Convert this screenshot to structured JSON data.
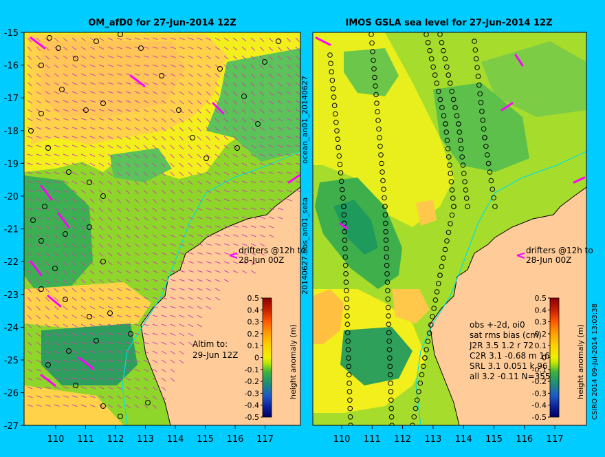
{
  "left_panel": {
    "title": "OM_afD0 for 27-Jun-2014 12Z",
    "drifters_label_1": "drifters @12h to",
    "drifters_label_2": "28-Jun 00Z",
    "altim_label_1": "Altim to:",
    "altim_label_2": "29-Jun 12Z",
    "colorbar_label": "height anomaly (m)"
  },
  "right_panel": {
    "title": "IMOS GSLA sea level  for 27-Jun-2014 12Z",
    "side_label_top": "ocean_an01_20140627",
    "side_label_bottom": "20140627.obs_an01_seta",
    "drifters_label_1": "drifters @12h to",
    "drifters_label_2": "28-Jun 00Z",
    "stats_lines": [
      "obs +-2d, oi0",
      "sat rms bias (cm)",
      "J2R   3.5 1.2 r 72",
      "C2R   3.1 -0.68 m 16",
      "SRL   3.1 0.051 k 96",
      "all   3.2 -0.11 N=355"
    ],
    "colorbar_label": "height anomaly (m)",
    "credit": "CSIRO 2014   09-Jul-2014 13:03:38"
  },
  "map": {
    "lat_ticks": [
      "-15",
      "-16",
      "-17",
      "-18",
      "-19",
      "-20",
      "-21",
      "-22",
      "-23",
      "-24",
      "-25",
      "-26",
      "-27"
    ],
    "lon_ticks": [
      "110",
      "111",
      "112",
      "113",
      "114",
      "115",
      "116",
      "117"
    ]
  },
  "colorbar": {
    "ticks": [
      "0.5",
      "0.4",
      "0.3",
      "0.2",
      "0.1",
      "0",
      "-0.1",
      "-0.2",
      "-0.3",
      "-0.4",
      "-0.5"
    ],
    "colors": [
      "#8b0000",
      "#c81e00",
      "#ff5a00",
      "#ffa000",
      "#ffd200",
      "#f0f000",
      "#b4e600",
      "#3cb43c",
      "#1e8c78",
      "#1e5ac8",
      "#0a1e96",
      "#000064"
    ]
  },
  "colors": {
    "background": "#00ccff",
    "land": "#ffcc99",
    "coastline": "#000000",
    "drifter": "#ff00ff",
    "vector": "#cc44aa",
    "contour_cyan": "#00e0e0"
  }
}
